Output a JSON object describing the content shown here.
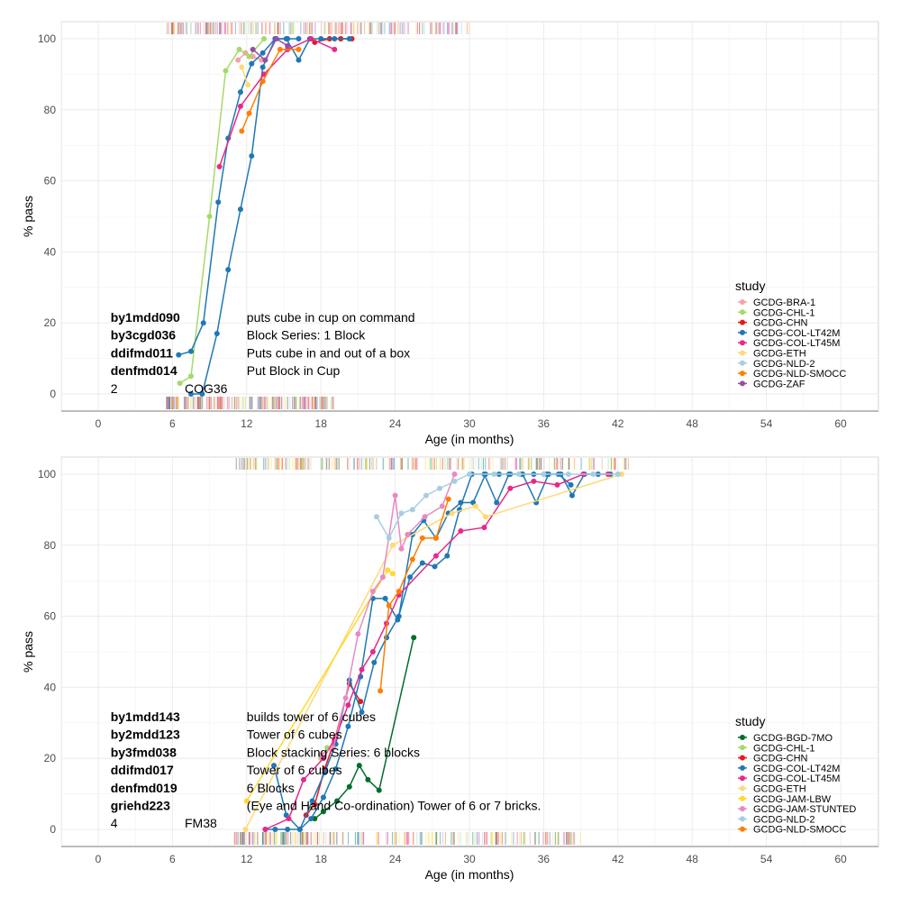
{
  "chart_data": [
    {
      "type": "line",
      "xlabel": "Age (in months)",
      "ylabel": "% pass",
      "xlim": [
        -3,
        63
      ],
      "ylim": [
        -5,
        105
      ],
      "x_ticks": [
        0,
        6,
        12,
        18,
        24,
        30,
        36,
        42,
        48,
        54,
        60
      ],
      "y_ticks": [
        0,
        20,
        40,
        60,
        80,
        100
      ],
      "grid": true,
      "legend_title": "study",
      "legend_position": "right",
      "annotations": {
        "items": [
          {
            "code": "by1mdd090",
            "label": "puts cube in cup on command"
          },
          {
            "code": "by3cgd036",
            "label": "Block Series: 1 Block"
          },
          {
            "code": "ddifmd011",
            "label": "Puts cube in and out of a box"
          },
          {
            "code": "denfmd014",
            "label": "Put Block in Cup"
          }
        ],
        "footer_left": "2",
        "footer_right": "COG36"
      },
      "series": [
        {
          "name": "GCDG-BRA-1",
          "color": "#F4A3A8",
          "x": [
            11.3,
            11.9,
            12.5,
            13.2
          ],
          "y": [
            94,
            96,
            95,
            94
          ]
        },
        {
          "name": "GCDG-CHL-1",
          "color": "#A6D96A",
          "x": [
            6.6,
            7.5,
            9.0,
            10.3,
            11.4,
            12.2,
            13.4
          ],
          "y": [
            3,
            5,
            50,
            91,
            97,
            95,
            100
          ]
        },
        {
          "name": "GCDG-CHN",
          "color": "#E41A1C",
          "x": [
            17.5,
            18.7,
            19.6,
            20.5
          ],
          "y": [
            99,
            100,
            100,
            100
          ]
        },
        {
          "name": "GCDG-COL-LT42M",
          "color": "#1F78B4",
          "x": [
            6.5,
            7.5,
            8.5,
            9.7,
            10.5,
            11.5,
            12.4,
            13.3,
            14.3,
            15.2,
            16.2,
            17.1,
            18.0,
            19.1,
            20.3
          ],
          "y": [
            11,
            12,
            20,
            54,
            72,
            85,
            93,
            96,
            100,
            100,
            94,
            100,
            100,
            100,
            100
          ]
        },
        {
          "name": "GCDG-COL-LT42M (2)",
          "color": "#1F78B4",
          "x": [
            7.5,
            8.4,
            9.6,
            10.5,
            11.5,
            12.4,
            13.3,
            14.3,
            15.3,
            16.2
          ],
          "y": [
            0,
            0,
            17,
            35,
            52,
            67,
            92,
            100,
            100,
            100
          ]
        },
        {
          "name": "GCDG-COL-LT45M",
          "color": "#E7298A",
          "x": [
            9.8,
            11.5,
            13.4,
            15.3,
            17.2,
            19.1
          ],
          "y": [
            64,
            81,
            90,
            97,
            100,
            97
          ]
        },
        {
          "name": "GCDG-ETH",
          "color": "#FED976",
          "x": [
            11.6,
            12.1
          ],
          "y": [
            92,
            87
          ]
        },
        {
          "name": "GCDG-NLD-SMOCC",
          "color": "#FF7F00",
          "x": [
            11.6,
            12.2,
            13.3,
            14.7,
            16.2
          ],
          "y": [
            74,
            79,
            88,
            97,
            97
          ]
        },
        {
          "name": "GCDG-ZAF",
          "color": "#984EA3",
          "x": [
            12.5,
            13.5,
            14.4,
            15.3
          ],
          "y": [
            97,
            94,
            100,
            98
          ]
        }
      ],
      "legend": [
        {
          "name": "GCDG-BRA-1",
          "color": "#F4A3A8"
        },
        {
          "name": "GCDG-CHL-1",
          "color": "#A6D96A"
        },
        {
          "name": "GCDG-CHN",
          "color": "#E41A1C"
        },
        {
          "name": "GCDG-COL-LT42M",
          "color": "#1F78B4"
        },
        {
          "name": "GCDG-COL-LT45M",
          "color": "#E7298A"
        },
        {
          "name": "GCDG-ETH",
          "color": "#FED976"
        },
        {
          "name": "GCDG-NLD-2",
          "color": "#A6CEE3"
        },
        {
          "name": "GCDG-NLD-SMOCC",
          "color": "#FF7F00"
        },
        {
          "name": "GCDG-ZAF",
          "color": "#984EA3"
        }
      ],
      "rug_top_range": [
        5.5,
        30
      ],
      "rug_bottom_range": [
        5.5,
        19
      ]
    },
    {
      "type": "line",
      "xlabel": "Age (in months)",
      "ylabel": "% pass",
      "xlim": [
        -3,
        63
      ],
      "ylim": [
        -5,
        105
      ],
      "x_ticks": [
        0,
        6,
        12,
        18,
        24,
        30,
        36,
        42,
        48,
        54,
        60
      ],
      "y_ticks": [
        0,
        20,
        40,
        60,
        80,
        100
      ],
      "grid": true,
      "legend_title": "study",
      "legend_position": "right",
      "annotations": {
        "items": [
          {
            "code": "by1mdd143",
            "label": "builds tower of 6 cubes"
          },
          {
            "code": "by2mdd123",
            "label": "Tower of 6 cubes"
          },
          {
            "code": "by3fmd038",
            "label": "Block stacking Series: 6 blocks"
          },
          {
            "code": "ddifmd017",
            "label": "Tower of 6 cubes"
          },
          {
            "code": "denfmd019",
            "label": "6 Blocks"
          },
          {
            "code": "griehd223",
            "label": "(Eye and Hand Co-ordination) Tower of 6 or 7 bricks."
          }
        ],
        "footer_left": "4",
        "footer_right": "FM38"
      },
      "series": [
        {
          "name": "GCDG-BGD-7MO",
          "color": "#006D2C",
          "x": [
            17.5,
            18.2,
            19.3,
            20.3,
            21.1,
            21.8,
            22.7,
            25.5
          ],
          "y": [
            3,
            5,
            8,
            12,
            18,
            14,
            11,
            54
          ]
        },
        {
          "name": "GCDG-CHL-1",
          "color": "#A6D96A",
          "x": [
            18.0,
            18.5
          ],
          "y": [
            20,
            23
          ]
        },
        {
          "name": "GCDG-CHN",
          "color": "#E41A1C",
          "x": [
            16.8,
            17.5,
            18.3,
            19.1,
            20.3,
            21.2
          ],
          "y": [
            4,
            7,
            17,
            25,
            41,
            36
          ]
        },
        {
          "name": "GCDG-COL-LT42M",
          "color": "#1F78B4",
          "x": [
            13.5,
            14.3,
            15.3,
            16.3,
            17.2,
            18.2,
            19.2,
            20.2,
            21.2,
            22.2,
            23.2,
            24.2,
            25.2,
            26.2,
            27.2,
            28.2,
            29.2,
            30.2,
            31.2,
            32.2,
            33.2,
            34.2,
            35.2,
            36.2,
            37.2,
            38.2
          ],
          "y": [
            0,
            0,
            0,
            0,
            3,
            9,
            17,
            29,
            43,
            65,
            65,
            59,
            71,
            75,
            74,
            77,
            90,
            100,
            100,
            92,
            100,
            100,
            100,
            100,
            100,
            97
          ]
        },
        {
          "name": "GCDG-COL-LT42M (2)",
          "color": "#1F78B4",
          "x": [
            14.2,
            15.2,
            16.3,
            17.3,
            18.3,
            19.2,
            20.3,
            21.3,
            22.3,
            23.3,
            24.3,
            25.4,
            26.3,
            27.3,
            28.3,
            29.3,
            30.3,
            31.3,
            32.4,
            33.3,
            34.3,
            35.4,
            36.4,
            37.4,
            38.3,
            39.3,
            40.4,
            41.4
          ],
          "y": [
            18,
            4,
            0,
            8,
            16,
            24,
            42,
            33,
            47,
            54,
            60,
            83,
            87,
            82,
            89,
            92,
            92,
            100,
            100,
            100,
            100,
            92,
            100,
            100,
            94,
            100,
            100,
            100
          ]
        },
        {
          "name": "GCDG-COL-LT45M",
          "color": "#E7298A",
          "x": [
            13.5,
            15.4,
            16.6,
            18.2,
            19.2,
            20.2,
            21.3,
            22.2,
            23.3,
            24.3,
            27.3,
            29.3,
            31.2,
            33.3,
            35.2,
            37.1,
            39.2,
            41.2
          ],
          "y": [
            0,
            3,
            14,
            20,
            26,
            35,
            45,
            50,
            58,
            66,
            77,
            84,
            85,
            96,
            98,
            97,
            100,
            100
          ]
        },
        {
          "name": "GCDG-ETH",
          "color": "#FED976",
          "x": [
            11.9,
            23.8,
            28.6,
            30.5,
            31.3,
            42.3
          ],
          "y": [
            0,
            80,
            89,
            91,
            88,
            100
          ]
        },
        {
          "name": "GCDG-JAM-LBW",
          "color": "#FFD92F",
          "x": [
            12.0,
            23.4,
            23.8
          ],
          "y": [
            8,
            73,
            72
          ]
        },
        {
          "name": "GCDG-JAM-STUNTED",
          "color": "#E78AC3",
          "x": [
            18.0,
            19.0,
            20.0,
            21.0,
            22.2,
            23.0,
            24.0,
            24.5,
            25.0,
            26.4,
            27.8,
            28.8
          ],
          "y": [
            21,
            23,
            37,
            55,
            67,
            71,
            94,
            79,
            83,
            88,
            91,
            100
          ]
        },
        {
          "name": "GCDG-NLD-2",
          "color": "#A6CEE3",
          "x": [
            22.5,
            23.5,
            24.5,
            25.4,
            26.5,
            27.6,
            28.8,
            30.0,
            32.0,
            34.0,
            36.0,
            38.0,
            40.0,
            42.0
          ],
          "y": [
            88,
            82,
            89,
            90,
            94,
            96,
            98,
            100,
            100,
            100,
            100,
            100,
            100,
            100
          ]
        },
        {
          "name": "GCDG-NLD-SMOCC",
          "color": "#FF7F00",
          "x": [
            22.8,
            23.5,
            24.3,
            25.4,
            26.2,
            27.3,
            28.3
          ],
          "y": [
            39,
            63,
            67,
            76,
            82,
            82,
            93
          ]
        }
      ],
      "legend": [
        {
          "name": "GCDG-BGD-7MO",
          "color": "#006D2C"
        },
        {
          "name": "GCDG-CHL-1",
          "color": "#A6D96A"
        },
        {
          "name": "GCDG-CHN",
          "color": "#E41A1C"
        },
        {
          "name": "GCDG-COL-LT42M",
          "color": "#1F78B4"
        },
        {
          "name": "GCDG-COL-LT45M",
          "color": "#E7298A"
        },
        {
          "name": "GCDG-ETH",
          "color": "#FED976"
        },
        {
          "name": "GCDG-JAM-LBW",
          "color": "#FFD92F"
        },
        {
          "name": "GCDG-JAM-STUNTED",
          "color": "#E78AC3"
        },
        {
          "name": "GCDG-NLD-2",
          "color": "#A6CEE3"
        },
        {
          "name": "GCDG-NLD-SMOCC",
          "color": "#FF7F00"
        }
      ],
      "rug_top_range": [
        11,
        43
      ],
      "rug_bottom_range": [
        11,
        39
      ]
    }
  ]
}
